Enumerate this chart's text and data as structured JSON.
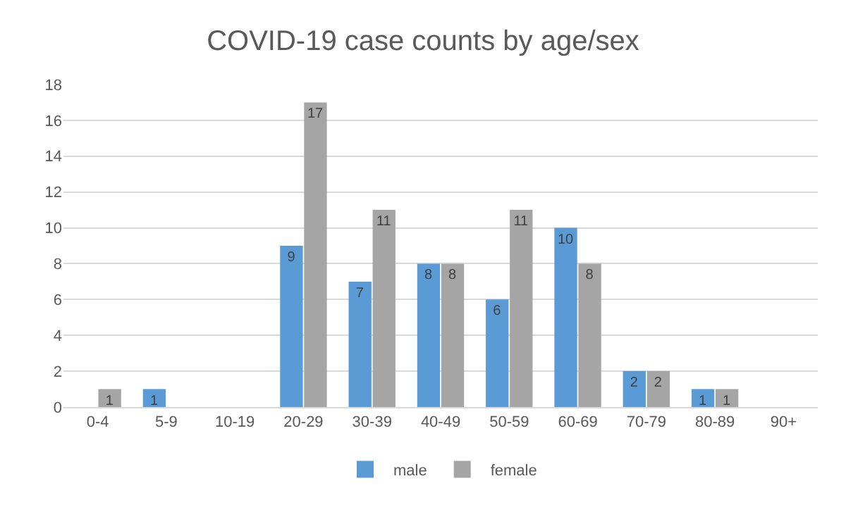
{
  "chart_data": {
    "type": "bar",
    "title": "COVID-19 case counts by age/sex",
    "categories": [
      "0-4",
      "5-9",
      "10-19",
      "20-29",
      "30-39",
      "40-49",
      "50-59",
      "60-69",
      "70-79",
      "80-89",
      "90+"
    ],
    "series": [
      {
        "name": "male",
        "color": "#5b9bd5",
        "values": [
          0,
          1,
          0,
          9,
          7,
          8,
          6,
          10,
          2,
          1,
          0
        ],
        "value_labels": [
          null,
          "1",
          null,
          "9",
          "7",
          "8",
          "6",
          "10",
          "2",
          "1",
          null
        ]
      },
      {
        "name": "female",
        "color": "#a5a5a5",
        "values": [
          1,
          0,
          0,
          17,
          11,
          8,
          11,
          8,
          2,
          1,
          0
        ],
        "value_labels": [
          "1",
          null,
          null,
          "17",
          "11",
          "8",
          "11",
          "8",
          "2",
          "1",
          null
        ]
      }
    ],
    "ylim": [
      0,
      18
    ],
    "yticks": [
      0,
      2,
      4,
      6,
      8,
      10,
      12,
      14,
      16,
      18
    ],
    "grid": "y",
    "legend": "bottom"
  }
}
